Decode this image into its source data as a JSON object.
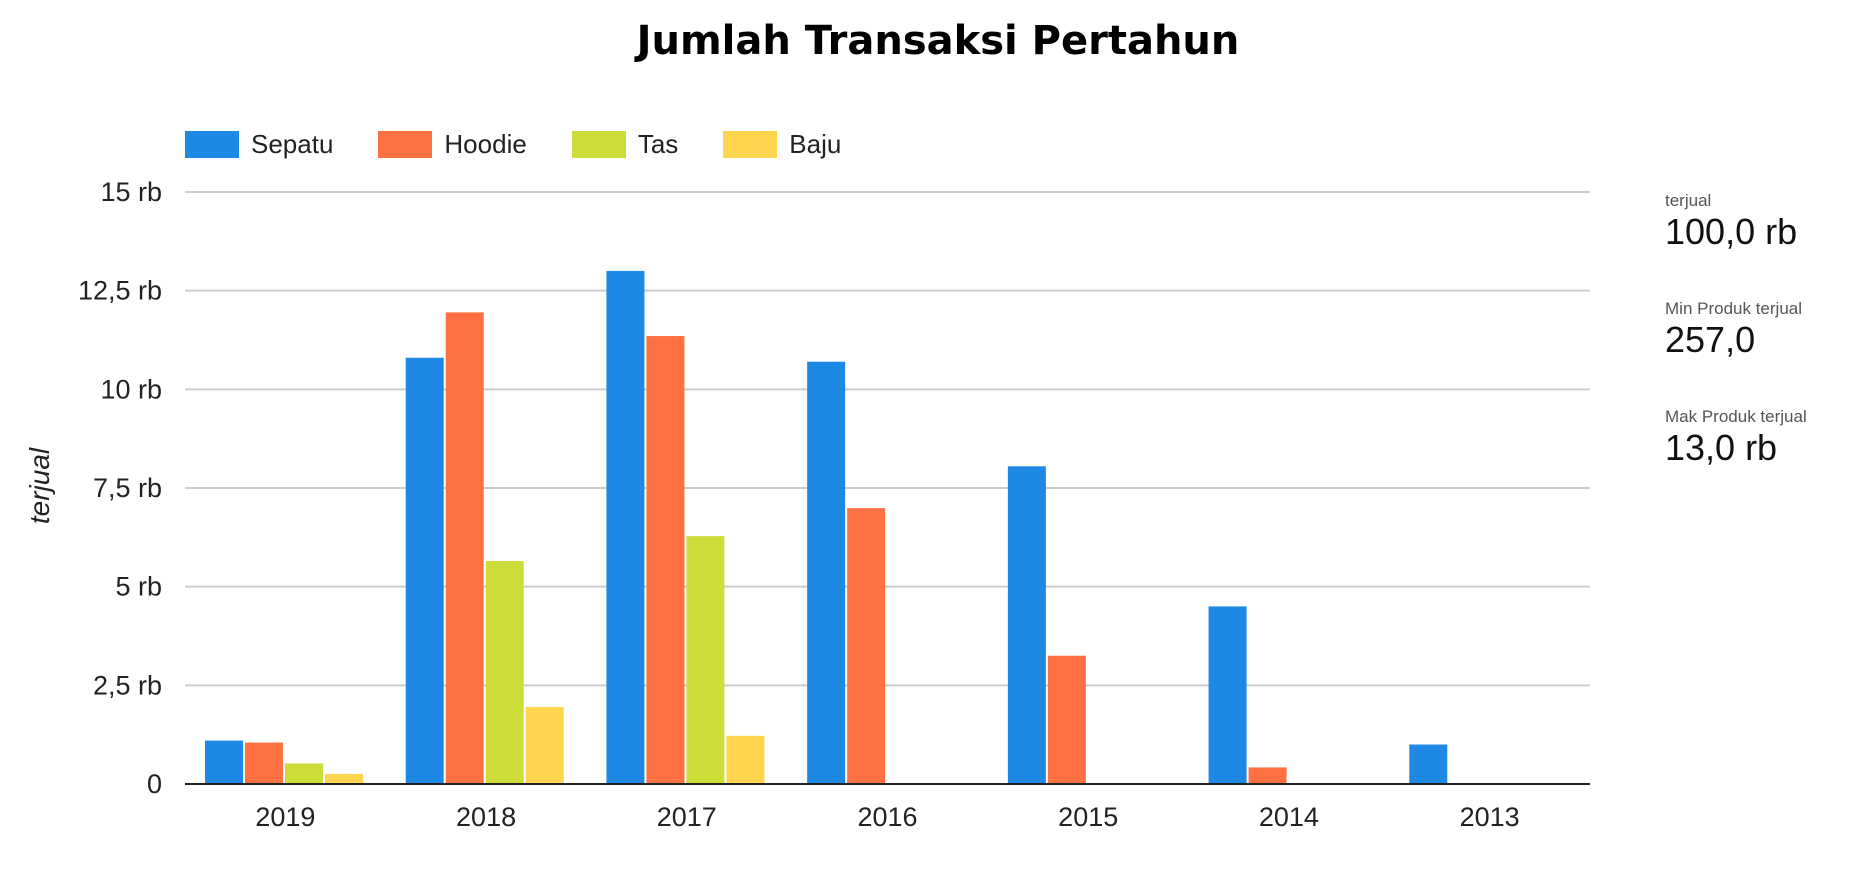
{
  "chart_data": {
    "type": "bar",
    "title": "Jumlah Transaksi Pertahun",
    "xlabel": "",
    "ylabel": "terjual",
    "categories": [
      "2019",
      "2018",
      "2017",
      "2016",
      "2015",
      "2014",
      "2013"
    ],
    "series": [
      {
        "name": "Sepatu",
        "color": "#1E88E5",
        "values": [
          1100,
          10800,
          13000,
          10700,
          8050,
          4500,
          1000
        ]
      },
      {
        "name": "Hoodie",
        "color": "#FF7043",
        "values": [
          1050,
          11950,
          11350,
          6990,
          3250,
          420,
          0
        ]
      },
      {
        "name": "Tas",
        "color": "#CDDC39",
        "values": [
          520,
          5650,
          6280,
          0,
          0,
          0,
          0
        ]
      },
      {
        "name": "Baju",
        "color": "#FFD54F",
        "values": [
          257,
          1950,
          1220,
          0,
          0,
          0,
          0
        ]
      }
    ],
    "ylim": [
      0,
      15000
    ],
    "yticks": [
      0,
      2500,
      5000,
      7500,
      10000,
      12500,
      15000
    ],
    "ytick_labels": [
      "0",
      "2,5 rb",
      "5 rb",
      "7,5 rb",
      "10 rb",
      "12,5 rb",
      "15 rb"
    ],
    "grid": true,
    "legend": "top-left"
  },
  "scorecards": [
    {
      "label": "terjual",
      "value": "100,0 rb"
    },
    {
      "label": "Min Produk terjual",
      "value": "257,0"
    },
    {
      "label": "Mak Produk terjual",
      "value": "13,0 rb"
    }
  ]
}
